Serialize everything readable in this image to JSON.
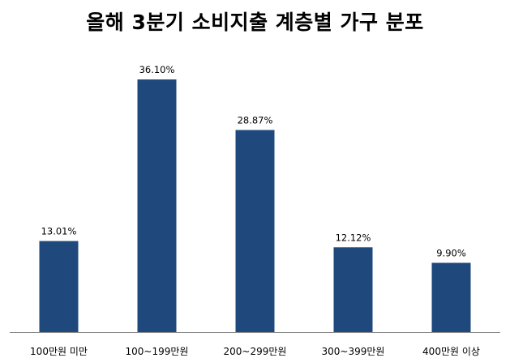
{
  "chart_data": {
    "type": "bar",
    "title": "올해 3분기 소비지출 계층별 가구 분포",
    "xlabel": "",
    "ylabel": "",
    "categories": [
      "100만원 미만",
      "100~199만원",
      "200~299만원",
      "300~399만원",
      "400만원 이상"
    ],
    "values": [
      13.01,
      36.1,
      28.87,
      12.12,
      9.9
    ],
    "data_labels": [
      "13.01%",
      "36.10%",
      "28.87%",
      "12.12%",
      "9.90%"
    ],
    "ylim": [
      0,
      40
    ],
    "grid": false,
    "legend": "none",
    "bar_color": "#1F497D"
  }
}
